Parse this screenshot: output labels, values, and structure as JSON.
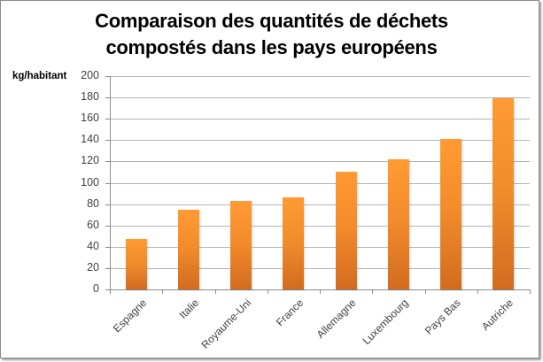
{
  "chart_data": {
    "type": "bar",
    "title": "Comparaison des quantités de déchets compostés dans les pays européens",
    "title_lines": [
      "Comparaison des quantités de déchets",
      "compostés dans les pays européens"
    ],
    "xlabel": "",
    "ylabel": "kg/habitant",
    "categories": [
      "Espagne",
      "Italie",
      "Royaume-Uni",
      "France",
      "Allemagne",
      "Luxembourg",
      "Pays Bas",
      "Autriche"
    ],
    "values": [
      47,
      75,
      83,
      86,
      110,
      122,
      141,
      179
    ],
    "ylim": [
      0,
      200
    ],
    "yticks": [
      0,
      20,
      40,
      60,
      80,
      100,
      120,
      140,
      160,
      180,
      200
    ],
    "grid": true,
    "legend": null,
    "bar_color": "#F79232"
  }
}
